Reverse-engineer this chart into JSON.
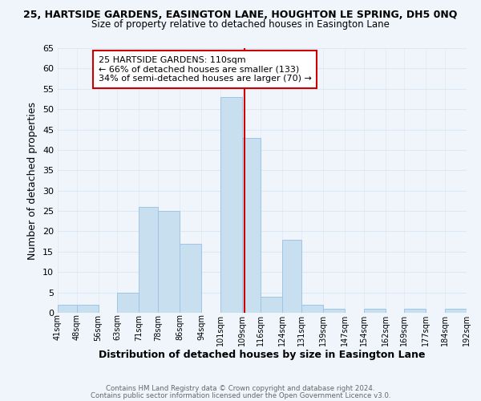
{
  "title_line1": "25, HARTSIDE GARDENS, EASINGTON LANE, HOUGHTON LE SPRING, DH5 0NQ",
  "title_line2": "Size of property relative to detached houses in Easington Lane",
  "xlabel": "Distribution of detached houses by size in Easington Lane",
  "ylabel": "Number of detached properties",
  "bin_labels": [
    "41sqm",
    "48sqm",
    "56sqm",
    "63sqm",
    "71sqm",
    "78sqm",
    "86sqm",
    "94sqm",
    "101sqm",
    "109sqm",
    "116sqm",
    "124sqm",
    "131sqm",
    "139sqm",
    "147sqm",
    "154sqm",
    "162sqm",
    "169sqm",
    "177sqm",
    "184sqm",
    "192sqm"
  ],
  "bin_edges": [
    41,
    48,
    56,
    63,
    71,
    78,
    86,
    94,
    101,
    109,
    116,
    124,
    131,
    139,
    147,
    154,
    162,
    169,
    177,
    184,
    192
  ],
  "bar_heights": [
    2,
    2,
    0,
    5,
    26,
    25,
    17,
    0,
    53,
    43,
    4,
    18,
    2,
    1,
    0,
    1,
    0,
    1,
    0,
    1
  ],
  "bar_color": "#c8dff0",
  "bar_edge_color": "#a0c4e8",
  "marker_value": 110,
  "marker_color": "#cc0000",
  "ylim": [
    0,
    65
  ],
  "yticks": [
    0,
    5,
    10,
    15,
    20,
    25,
    30,
    35,
    40,
    45,
    50,
    55,
    60,
    65
  ],
  "annotation_title": "25 HARTSIDE GARDENS: 110sqm",
  "annotation_line1": "← 66% of detached houses are smaller (133)",
  "annotation_line2": "34% of semi-detached houses are larger (70) →",
  "annotation_box_color": "#ffffff",
  "annotation_box_edge": "#cc0000",
  "footer_line1": "Contains HM Land Registry data © Crown copyright and database right 2024.",
  "footer_line2": "Contains public sector information licensed under the Open Government Licence v3.0.",
  "grid_color": "#dde8f5",
  "background_color": "#f0f5fc"
}
